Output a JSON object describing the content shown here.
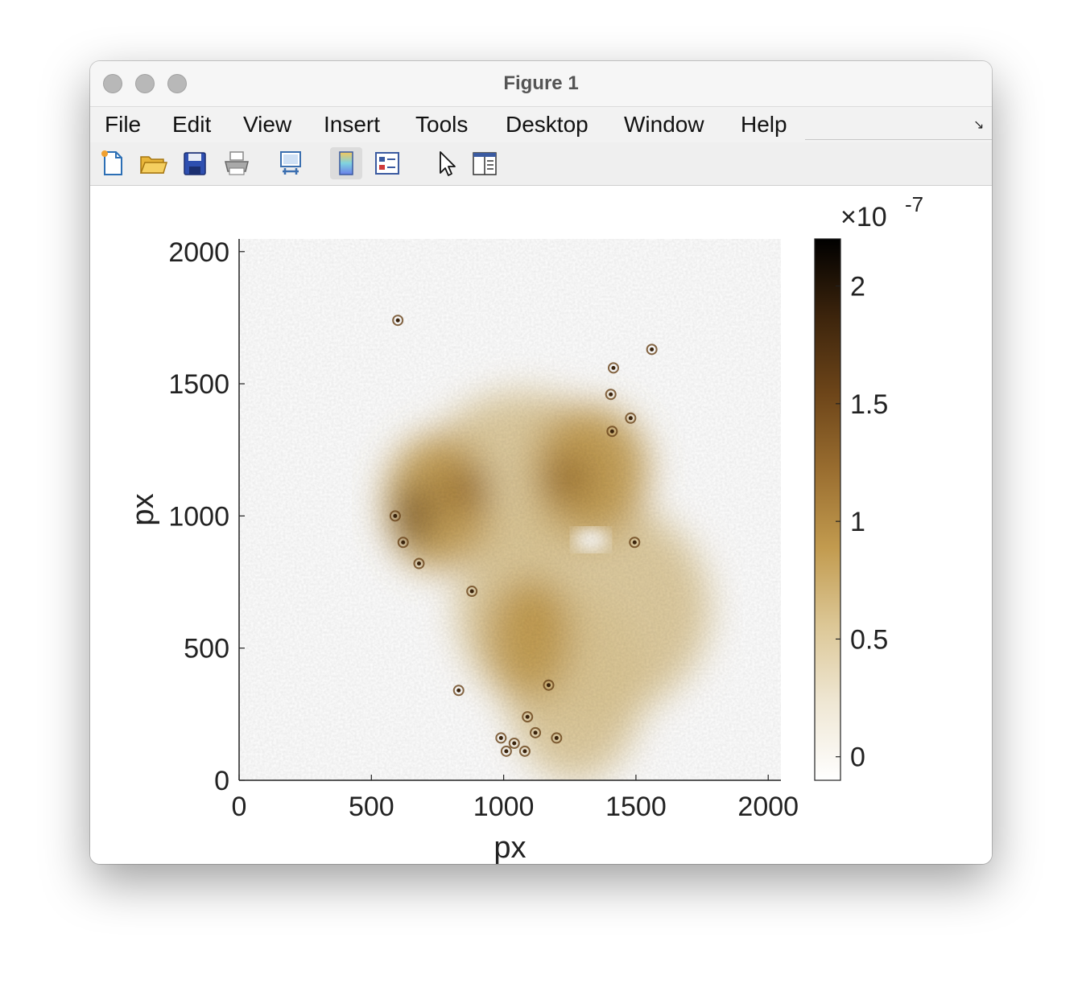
{
  "window": {
    "title": "Figure 1"
  },
  "menu": [
    "File",
    "Edit",
    "View",
    "Insert",
    "Tools",
    "Desktop",
    "Window",
    "Help"
  ],
  "toolbar": [
    "new-figure",
    "open-file",
    "save",
    "print",
    "link-plot",
    "insert-colorbar",
    "insert-legend",
    "edit-plot",
    "property-inspector"
  ],
  "chart_data": {
    "type": "heatmap",
    "xlabel": "px",
    "ylabel": "px",
    "xlim": [
      0,
      2048
    ],
    "ylim": [
      0,
      2048
    ],
    "x_ticks": [
      0,
      500,
      1000,
      1500,
      2000
    ],
    "y_ticks": [
      0,
      500,
      1000,
      1500,
      2000
    ],
    "x_tick_labels": [
      "0",
      "500",
      "1000",
      "1500",
      "2000"
    ],
    "y_tick_labels": [
      "0",
      "500",
      "1000",
      "1500",
      "2000"
    ],
    "colorbar": {
      "exponent_label": "×10",
      "exponent": "-7",
      "clim": [
        -0.1,
        2.2
      ],
      "ticks": [
        0,
        0.5,
        1,
        1.5,
        2
      ],
      "tick_labels": [
        "0",
        "0.5",
        "1",
        "1.5",
        "2"
      ],
      "colormap": [
        "#ffffff",
        "#efe7d4",
        "#dcc796",
        "#c29b4f",
        "#9a6e30",
        "#6d4519",
        "#3c240c",
        "#000000"
      ]
    },
    "features": [
      {
        "x": 1080,
        "y": 1150,
        "rx": 380,
        "ry": 320,
        "v": 0.55
      },
      {
        "x": 1300,
        "y": 650,
        "rx": 480,
        "ry": 430,
        "v": 0.5
      },
      {
        "x": 1270,
        "y": 360,
        "rx": 260,
        "ry": 360,
        "v": 0.45
      },
      {
        "x": 750,
        "y": 1050,
        "rx": 200,
        "ry": 260,
        "v": 0.8
      },
      {
        "x": 1330,
        "y": 1170,
        "rx": 220,
        "ry": 250,
        "v": 0.75
      },
      {
        "x": 1100,
        "y": 540,
        "rx": 160,
        "ry": 230,
        "v": 0.75
      },
      {
        "x": 660,
        "y": 1000,
        "rx": 60,
        "ry": 120,
        "v": 1.6
      },
      {
        "x": 860,
        "y": 1100,
        "rx": 90,
        "ry": 90,
        "v": 1.1
      },
      {
        "x": 1240,
        "y": 1140,
        "rx": 90,
        "ry": 90,
        "v": 1.1
      },
      {
        "x": 1150,
        "y": 640,
        "rx": 80,
        "ry": 110,
        "v": 0.9
      }
    ],
    "particles": [
      {
        "x": 1415,
        "y": 1560
      },
      {
        "x": 1405,
        "y": 1460
      },
      {
        "x": 1480,
        "y": 1370
      },
      {
        "x": 1560,
        "y": 1630
      },
      {
        "x": 1495,
        "y": 900
      },
      {
        "x": 880,
        "y": 715
      },
      {
        "x": 590,
        "y": 1000
      },
      {
        "x": 620,
        "y": 900
      },
      {
        "x": 680,
        "y": 820
      },
      {
        "x": 830,
        "y": 340
      },
      {
        "x": 1170,
        "y": 360
      },
      {
        "x": 1090,
        "y": 240
      },
      {
        "x": 990,
        "y": 160
      },
      {
        "x": 1040,
        "y": 140
      },
      {
        "x": 1080,
        "y": 110
      },
      {
        "x": 1010,
        "y": 110
      },
      {
        "x": 1120,
        "y": 180
      },
      {
        "x": 1200,
        "y": 160
      },
      {
        "x": 600,
        "y": 1740
      },
      {
        "x": 1410,
        "y": 1320
      }
    ],
    "cutout": {
      "x": 1330,
      "y": 910
    }
  }
}
